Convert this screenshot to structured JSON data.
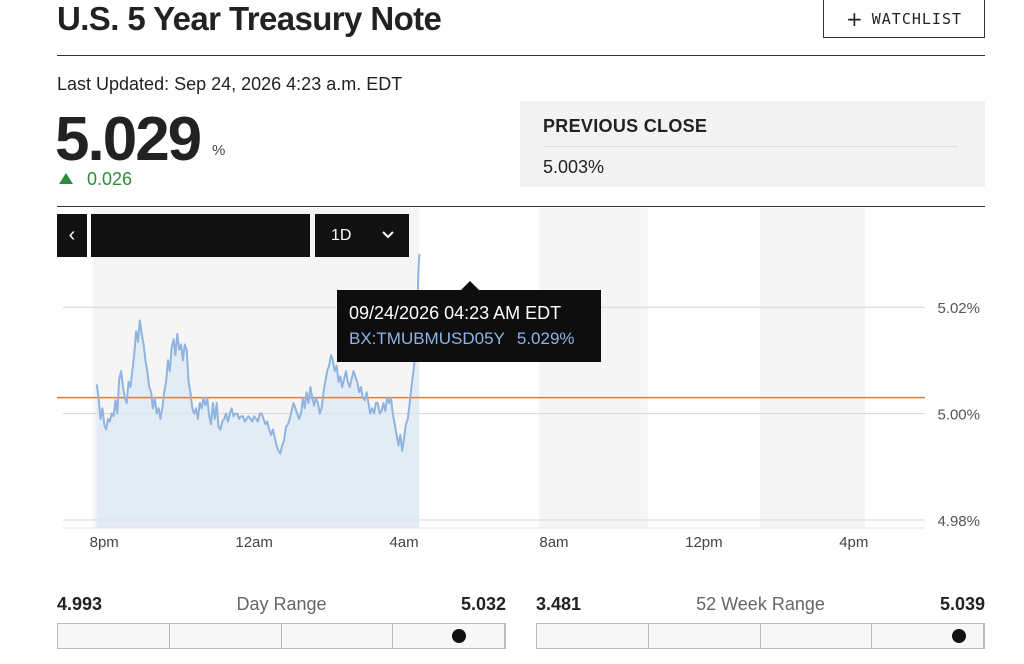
{
  "header": {
    "title": "U.S. 5 Year Treasury Note",
    "watchlist_label": "WATCHLIST"
  },
  "quote": {
    "last_updated": "Last Updated: Sep 24, 2026 4:23 a.m. EDT",
    "price": "5.029",
    "unit": "%",
    "change": "0.026",
    "change_direction": "up"
  },
  "previous_close": {
    "label": "PREVIOUS CLOSE",
    "value": "5.003%"
  },
  "controls": {
    "range_label": "1D"
  },
  "tooltip": {
    "datetime": "09/24/2026 04:23 AM EDT",
    "symbol": "BX:TMUBMUSD05Y",
    "value": "5.029%"
  },
  "day_range": {
    "label": "Day Range",
    "low": "4.993",
    "high": "5.032",
    "position": 0.92
  },
  "week52_range": {
    "label": "52 Week Range",
    "low": "3.481",
    "high": "5.039",
    "position": 0.97
  },
  "colors": {
    "line": "#8fb4e0",
    "area": "#dce8f3",
    "prev_close_line": "#e07b3a",
    "up": "#2e8b3e"
  },
  "chart_data": {
    "type": "line",
    "x_unit": "hours since 12am",
    "x_range": [
      -5.1,
      17.9
    ],
    "ylim": [
      4.9785,
      5.0285
    ],
    "y_ticks": [
      "5.02%",
      "5.00%",
      "4.98%"
    ],
    "y_tick_values": [
      5.02,
      5.0,
      4.98
    ],
    "x_ticks": [
      "8pm",
      "12am",
      "4am",
      "8am",
      "12pm",
      "4pm"
    ],
    "x_tick_values": [
      -4,
      0,
      4,
      8,
      12,
      16
    ],
    "previous_close": 5.003,
    "series": [
      {
        "values": [
          [
            -4.2,
            5.0055
          ],
          [
            -4.15,
            5.003
          ],
          [
            -4.1,
            4.999
          ],
          [
            -4.05,
            5.001
          ],
          [
            -4.0,
            4.998
          ],
          [
            -3.95,
            4.997
          ],
          [
            -3.9,
            4.999
          ],
          [
            -3.85,
            4.9985
          ],
          [
            -3.8,
            5.0
          ],
          [
            -3.75,
            4.9995
          ],
          [
            -3.7,
            5.0025
          ],
          [
            -3.65,
            5.0
          ],
          [
            -3.6,
            5.0065
          ],
          [
            -3.55,
            5.008
          ],
          [
            -3.5,
            5.005
          ],
          [
            -3.45,
            5.003
          ],
          [
            -3.4,
            5.002
          ],
          [
            -3.35,
            5.006
          ],
          [
            -3.3,
            5.005
          ],
          [
            -3.25,
            5.008
          ],
          [
            -3.2,
            5.011
          ],
          [
            -3.15,
            5.0155
          ],
          [
            -3.1,
            5.0135
          ],
          [
            -3.05,
            5.0175
          ],
          [
            -3.0,
            5.015
          ],
          [
            -2.95,
            5.013
          ],
          [
            -2.9,
            5.01
          ],
          [
            -2.85,
            5.008
          ],
          [
            -2.8,
            5.005
          ],
          [
            -2.75,
            5.004
          ],
          [
            -2.7,
            5.001
          ],
          [
            -2.65,
            5.003
          ],
          [
            -2.6,
            5.0
          ],
          [
            -2.55,
            5.001
          ],
          [
            -2.5,
            4.999
          ],
          [
            -2.45,
            5.001
          ],
          [
            -2.4,
            5.004
          ],
          [
            -2.35,
            5.006
          ],
          [
            -2.3,
            5.01
          ],
          [
            -2.25,
            5.008
          ],
          [
            -2.2,
            5.0125
          ],
          [
            -2.15,
            5.014
          ],
          [
            -2.1,
            5.011
          ],
          [
            -2.05,
            5.015
          ],
          [
            -2.0,
            5.012
          ],
          [
            -1.95,
            5.013
          ],
          [
            -1.9,
            5.01
          ],
          [
            -1.85,
            5.013
          ],
          [
            -1.8,
            5.012
          ],
          [
            -1.75,
            5.006
          ],
          [
            -1.7,
            5.004
          ],
          [
            -1.65,
            5.001
          ],
          [
            -1.6,
            5.0
          ],
          [
            -1.55,
            5.001
          ],
          [
            -1.5,
            4.999
          ],
          [
            -1.45,
            5.002
          ],
          [
            -1.4,
            5.001
          ],
          [
            -1.35,
            5.003
          ],
          [
            -1.3,
            5.0015
          ],
          [
            -1.25,
            5.003
          ],
          [
            -1.2,
            4.9995
          ],
          [
            -1.15,
            4.998
          ],
          [
            -1.1,
            5.002
          ],
          [
            -1.05,
            4.999
          ],
          [
            -1.0,
            5.002
          ],
          [
            -0.95,
            4.9975
          ],
          [
            -0.9,
            4.997
          ],
          [
            -0.85,
            4.9985
          ],
          [
            -0.8,
            4.999
          ],
          [
            -0.75,
            5.0
          ],
          [
            -0.7,
            4.9985
          ],
          [
            -0.65,
            5.0
          ],
          [
            -0.6,
            5.001
          ],
          [
            -0.55,
            4.9995
          ],
          [
            -0.5,
            5.0
          ],
          [
            -0.45,
            5.0
          ],
          [
            -0.4,
            4.999
          ],
          [
            -0.35,
            4.9995
          ],
          [
            -0.3,
            4.9995
          ],
          [
            -0.25,
            4.9985
          ],
          [
            -0.2,
            4.999
          ],
          [
            -0.15,
            4.9995
          ],
          [
            -0.1,
            4.999
          ],
          [
            -0.05,
            4.9985
          ],
          [
            0.0,
            4.9995
          ],
          [
            0.05,
            4.999
          ],
          [
            0.1,
            4.9985
          ],
          [
            0.15,
            5.0
          ],
          [
            0.2,
            5.0
          ],
          [
            0.25,
            4.999
          ],
          [
            0.3,
            4.998
          ],
          [
            0.35,
            4.9985
          ],
          [
            0.4,
            4.997
          ],
          [
            0.45,
            4.996
          ],
          [
            0.5,
            4.997
          ],
          [
            0.55,
            4.9955
          ],
          [
            0.6,
            4.994
          ],
          [
            0.65,
            4.993
          ],
          [
            0.7,
            4.9925
          ],
          [
            0.75,
            4.994
          ],
          [
            0.8,
            4.995
          ],
          [
            0.85,
            4.9975
          ],
          [
            0.9,
            4.998
          ],
          [
            0.95,
            4.999
          ],
          [
            1.0,
            5.0005
          ],
          [
            1.05,
            5.002
          ],
          [
            1.1,
            5.001
          ],
          [
            1.15,
            5.0
          ],
          [
            1.2,
            4.999
          ],
          [
            1.25,
            5.0
          ],
          [
            1.3,
            5.003
          ],
          [
            1.35,
            5.001
          ],
          [
            1.4,
            5.004
          ],
          [
            1.45,
            5.002
          ],
          [
            1.5,
            5.005
          ],
          [
            1.55,
            5.003
          ],
          [
            1.6,
            5.0015
          ],
          [
            1.65,
            5.003
          ],
          [
            1.7,
            5.002
          ],
          [
            1.75,
            5.0
          ],
          [
            1.8,
            5.001
          ],
          [
            1.85,
            5.004
          ],
          [
            1.9,
            5.006
          ],
          [
            1.95,
            5.008
          ],
          [
            2.0,
            5.009
          ],
          [
            2.05,
            5.011
          ],
          [
            2.1,
            5.01
          ],
          [
            2.15,
            5.008
          ],
          [
            2.2,
            5.009
          ],
          [
            2.25,
            5.006
          ],
          [
            2.3,
            5.007
          ],
          [
            2.35,
            5.005
          ],
          [
            2.4,
            5.0065
          ],
          [
            2.45,
            5.008
          ],
          [
            2.5,
            5.006
          ],
          [
            2.55,
            5.005
          ],
          [
            2.6,
            5.0065
          ],
          [
            2.65,
            5.008
          ],
          [
            2.7,
            5.007
          ],
          [
            2.75,
            5.006
          ],
          [
            2.8,
            5.004
          ],
          [
            2.85,
            5.005
          ],
          [
            2.9,
            5.003
          ],
          [
            2.95,
            5.0025
          ],
          [
            3.0,
            5.004
          ],
          [
            3.05,
            5.002
          ],
          [
            3.1,
            5.0
          ],
          [
            3.15,
            5.001
          ],
          [
            3.2,
            5.0
          ],
          [
            3.25,
            5.002
          ],
          [
            3.3,
            5.002
          ],
          [
            3.35,
            5.0
          ],
          [
            3.4,
            5.0005
          ],
          [
            3.45,
            5.002
          ],
          [
            3.5,
            5.0005
          ],
          [
            3.55,
            5.003
          ],
          [
            3.6,
            5.002
          ],
          [
            3.65,
            5.003
          ],
          [
            3.7,
            5.0
          ],
          [
            3.75,
            4.998
          ],
          [
            3.8,
            4.996
          ],
          [
            3.85,
            4.994
          ],
          [
            3.9,
            4.996
          ],
          [
            3.95,
            4.993
          ],
          [
            4.0,
            4.9955
          ],
          [
            4.05,
            4.998
          ],
          [
            4.1,
            4.999
          ],
          [
            4.15,
            5.002
          ],
          [
            4.2,
            5.005
          ],
          [
            4.25,
            5.008
          ],
          [
            4.3,
            5.011
          ],
          [
            4.35,
            5.018
          ],
          [
            4.38,
            5.026
          ],
          [
            4.4,
            5.029
          ],
          [
            4.41,
            5.03
          ]
        ]
      }
    ],
    "highlight_bands_x": [
      [
        -4.3,
        4.4
      ],
      [
        7.6,
        10.5
      ],
      [
        13.5,
        16.3
      ]
    ]
  }
}
